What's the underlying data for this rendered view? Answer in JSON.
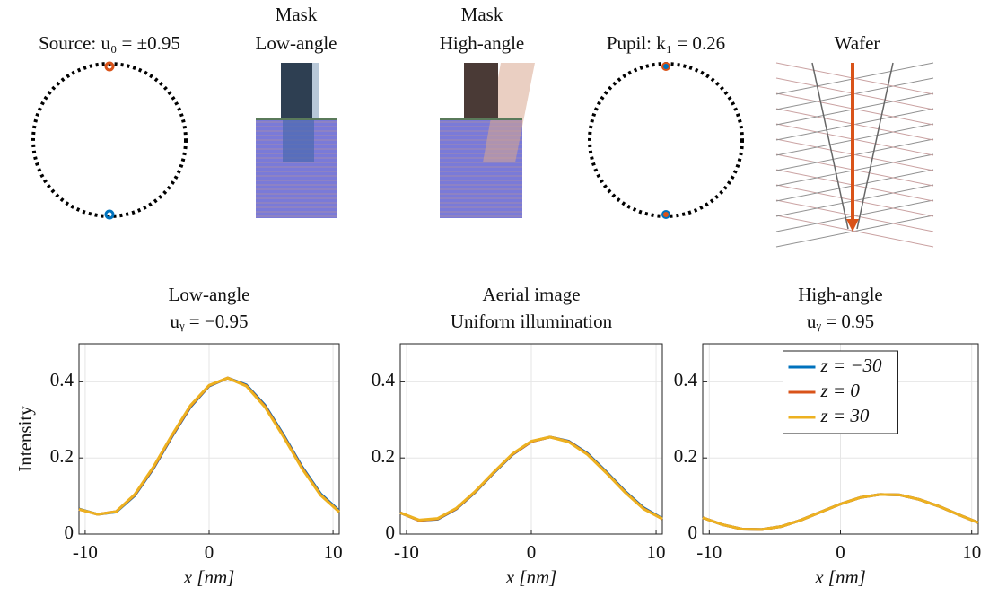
{
  "diagram": {
    "labels": [
      [
        "Source: u₀ = ±0.95"
      ],
      [
        "Mask",
        "Low-angle"
      ],
      [
        "Mask",
        "High-angle"
      ],
      [
        "Pupil: k₁ = 0.26"
      ],
      [
        "Wafer"
      ]
    ]
  },
  "chart_data": [
    {
      "type": "line",
      "title": [
        "Low-angle",
        "uᵧ = −0.95"
      ],
      "xlabel": "x [nm]",
      "ylabel": "Intensity",
      "x": [
        -10.5,
        -9,
        -7.5,
        -6,
        -4.5,
        -3,
        -1.5,
        0,
        1.5,
        3,
        4.5,
        6,
        7.5,
        9,
        10.5
      ],
      "series": [
        {
          "name": "z = −30",
          "color": "#0072bd",
          "values": [
            0.066,
            0.052,
            0.058,
            0.101,
            0.172,
            0.256,
            0.334,
            0.389,
            0.41,
            0.392,
            0.339,
            0.261,
            0.177,
            0.106,
            0.061
          ]
        },
        {
          "name": "z = 0",
          "color": "#d95319",
          "values": [
            0.065,
            0.052,
            0.059,
            0.103,
            0.174,
            0.258,
            0.336,
            0.39,
            0.41,
            0.39,
            0.336,
            0.258,
            0.174,
            0.103,
            0.059
          ]
        },
        {
          "name": "z = 30",
          "color": "#edb120",
          "values": [
            0.065,
            0.052,
            0.059,
            0.104,
            0.176,
            0.26,
            0.338,
            0.391,
            0.41,
            0.389,
            0.334,
            0.256,
            0.172,
            0.102,
            0.058
          ]
        }
      ],
      "xlim": [
        -10.5,
        10.5
      ],
      "xticks": [
        -10,
        0,
        10
      ],
      "ylim": [
        0,
        0.5
      ],
      "yticks": [
        0,
        0.2,
        0.4
      ],
      "grid": true
    },
    {
      "type": "line",
      "title": [
        "Aerial image",
        "Uniform illumination"
      ],
      "xlabel": "x [nm]",
      "x": [
        -10.5,
        -9,
        -7.5,
        -6,
        -4.5,
        -3,
        -1.5,
        0,
        1.5,
        3,
        4.5,
        6,
        7.5,
        9,
        10.5
      ],
      "series": [
        {
          "name": "z = −30",
          "color": "#0072bd",
          "values": [
            0.056,
            0.036,
            0.039,
            0.066,
            0.11,
            0.161,
            0.209,
            0.243,
            0.255,
            0.244,
            0.212,
            0.164,
            0.113,
            0.069,
            0.041
          ]
        },
        {
          "name": "z = 0",
          "color": "#d95319",
          "values": [
            0.056,
            0.036,
            0.04,
            0.067,
            0.111,
            0.162,
            0.21,
            0.243,
            0.255,
            0.243,
            0.21,
            0.162,
            0.111,
            0.067,
            0.04
          ]
        },
        {
          "name": "z = 30",
          "color": "#edb120",
          "values": [
            0.056,
            0.037,
            0.041,
            0.068,
            0.112,
            0.163,
            0.211,
            0.244,
            0.255,
            0.242,
            0.209,
            0.161,
            0.11,
            0.066,
            0.04
          ]
        }
      ],
      "xlim": [
        -10.5,
        10.5
      ],
      "xticks": [
        -10,
        0,
        10
      ],
      "ylim": [
        0,
        0.5
      ],
      "yticks": [
        0,
        0.2,
        0.4
      ],
      "grid": true
    },
    {
      "type": "line",
      "title": [
        "High-angle",
        "uᵧ = 0.95"
      ],
      "xlabel": "x [nm]",
      "x": [
        -10.5,
        -9,
        -7.5,
        -6,
        -4.5,
        -3,
        -1.5,
        0,
        1.5,
        3,
        4.5,
        6,
        7.5,
        9,
        10.5
      ],
      "series": [
        {
          "name": "z = −30",
          "color": "#0072bd",
          "values": [
            0.043,
            0.025,
            0.013,
            0.012,
            0.02,
            0.037,
            0.058,
            0.079,
            0.096,
            0.104,
            0.103,
            0.091,
            0.073,
            0.051,
            0.03
          ]
        },
        {
          "name": "z = 0",
          "color": "#d95319",
          "values": [
            0.043,
            0.025,
            0.013,
            0.012,
            0.02,
            0.037,
            0.058,
            0.079,
            0.096,
            0.104,
            0.103,
            0.091,
            0.073,
            0.051,
            0.03
          ]
        },
        {
          "name": "z = 30",
          "color": "#edb120",
          "values": [
            0.043,
            0.025,
            0.013,
            0.012,
            0.02,
            0.037,
            0.058,
            0.079,
            0.096,
            0.104,
            0.103,
            0.091,
            0.073,
            0.051,
            0.03
          ]
        }
      ],
      "xlim": [
        -10.5,
        10.5
      ],
      "xticks": [
        -10,
        0,
        10
      ],
      "ylim": [
        0,
        0.5
      ],
      "yticks": [
        0,
        0.2,
        0.4
      ],
      "grid": true,
      "legend": "top"
    }
  ]
}
